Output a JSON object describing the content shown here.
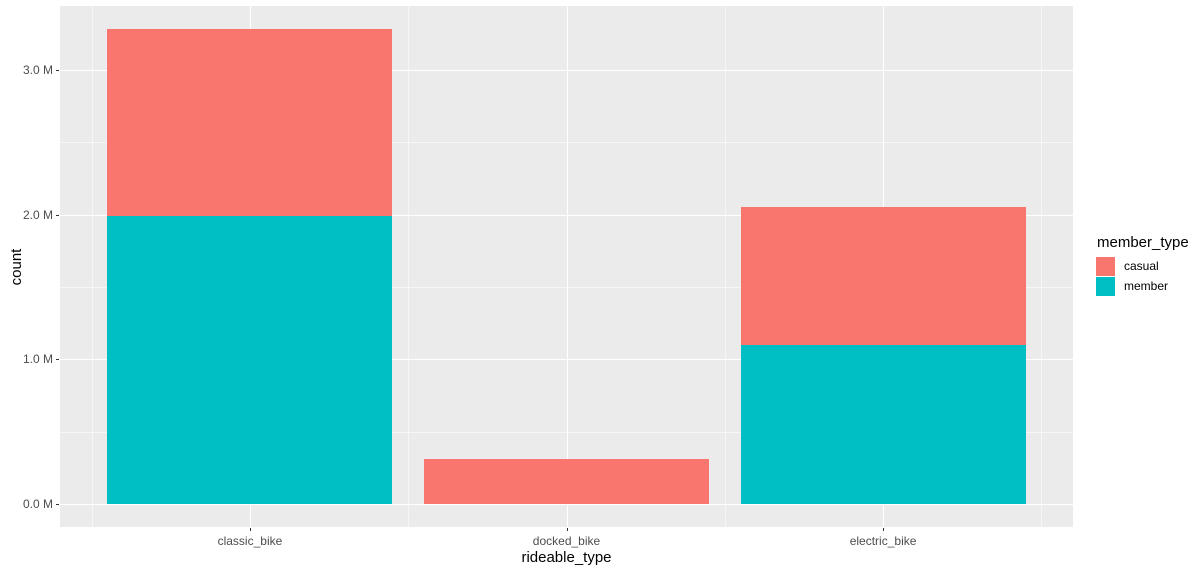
{
  "chart_data": {
    "type": "bar",
    "stacked": true,
    "title": "",
    "xlabel": "rideable_type",
    "ylabel": "count",
    "categories": [
      "classic_bike",
      "docked_bike",
      "electric_bike"
    ],
    "series": [
      {
        "name": "casual",
        "color": "#F8766D",
        "values": [
          1.29,
          0.31,
          0.95
        ]
      },
      {
        "name": "member",
        "color": "#00BFC4",
        "values": [
          1.99,
          0.0,
          1.1
        ]
      }
    ],
    "stack_order_bottom_to_top": [
      "member",
      "casual"
    ],
    "values_unit": "millions of rides",
    "y_ticks": [
      {
        "value": 0,
        "label": "0.0 M"
      },
      {
        "value": 1,
        "label": "1.0 M"
      },
      {
        "value": 2,
        "label": "2.0 M"
      },
      {
        "value": 3,
        "label": "3.0 M"
      }
    ],
    "y_minor_ticks": [
      0.5,
      1.5,
      2.5
    ],
    "x_minor_positions": [
      0.5,
      1.5,
      2.5,
      3.5
    ],
    "ylim": [
      -0.158,
      3.442
    ],
    "xlim": [
      0.4,
      3.6
    ],
    "bar_width_units": 0.9,
    "grid": true,
    "legend": {
      "title": "member_type",
      "position": "right"
    },
    "colors": {
      "panel_background": "#ebebeb",
      "gridline": "#ffffff",
      "tick_text": "#4d4d4d",
      "tick_mark": "#333333",
      "axis_title_text": "#000000"
    }
  }
}
